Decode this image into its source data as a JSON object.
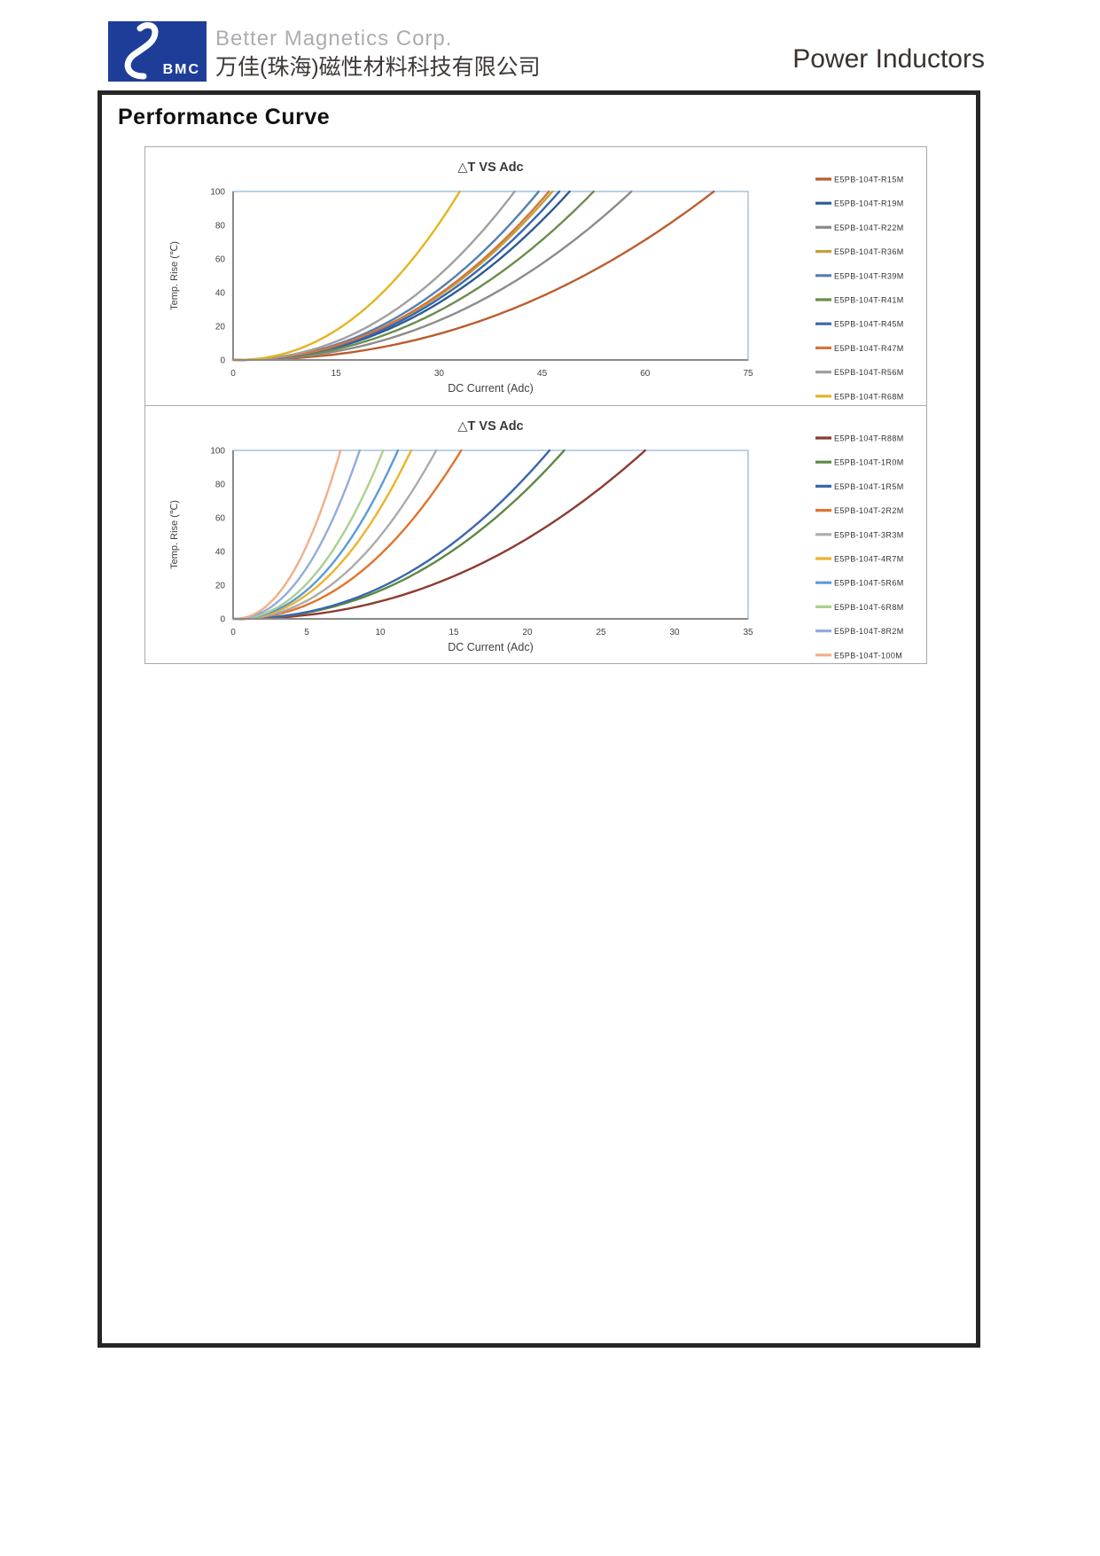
{
  "header": {
    "logo": {
      "abbr": "BMC",
      "color": "#1E3D99"
    },
    "company_en": "Better Magnetics Corp.",
    "company_cn": "万佳(珠海)磁性材料科技有限公司",
    "product_title": "Power Inductors"
  },
  "section_title": "Performance Curve",
  "chart_data": [
    {
      "type": "line",
      "title": "△T VS Adc",
      "xlabel": "DC Current (Adc)",
      "ylabel": "Temp. Rise (℃)",
      "xlim": [
        0,
        75
      ],
      "xticks": [
        0,
        15,
        30,
        45,
        60,
        75
      ],
      "ylim": [
        0,
        100
      ],
      "yticks": [
        0,
        20,
        40,
        60,
        80,
        100
      ],
      "grid": false,
      "legend_position": "right",
      "curve_model": "temp_rise(I) = 100 * (I / i_at_dt100)^exponent, clipped at 100 C",
      "curve_exponent": 2.2,
      "series": [
        {
          "name": "E5PB-104T-R15M",
          "color": "#BB5D2E",
          "i_at_dt100": 70
        },
        {
          "name": "E5PB-104T-R19M",
          "color": "#2E5A94",
          "i_at_dt100": 49
        },
        {
          "name": "E5PB-104T-R22M",
          "color": "#8C8C8C",
          "i_at_dt100": 58
        },
        {
          "name": "E5PB-104T-R36M",
          "color": "#C3A23D",
          "i_at_dt100": 46.5
        },
        {
          "name": "E5PB-104T-R39M",
          "color": "#557FB3",
          "i_at_dt100": 44.5
        },
        {
          "name": "E5PB-104T-R41M",
          "color": "#6D8C4C",
          "i_at_dt100": 52.5
        },
        {
          "name": "E5PB-104T-R45M",
          "color": "#3667B8",
          "i_at_dt100": 47.5
        },
        {
          "name": "E5PB-104T-R47M",
          "color": "#D4763B",
          "i_at_dt100": 46
        },
        {
          "name": "E5PB-104T-R56M",
          "color": "#A0A0A0",
          "i_at_dt100": 41
        },
        {
          "name": "E5PB-104T-R68M",
          "color": "#E4B520",
          "i_at_dt100": 33
        }
      ]
    },
    {
      "type": "line",
      "title": "△T VS Adc",
      "xlabel": "DC Current (Adc)",
      "ylabel": "Temp. Rise (℃)",
      "xlim": [
        0,
        35
      ],
      "xticks": [
        0,
        5,
        10,
        15,
        20,
        25,
        30,
        35
      ],
      "ylim": [
        0,
        100
      ],
      "yticks": [
        0,
        20,
        40,
        60,
        80,
        100
      ],
      "grid": false,
      "legend_position": "right",
      "curve_model": "temp_rise(I) = 100 * (I / i_at_dt100)^exponent, clipped at 100 C",
      "curve_exponent": 2.2,
      "series": [
        {
          "name": "E5PB-104T-R88M",
          "color": "#8C3B32",
          "i_at_dt100": 28
        },
        {
          "name": "E5PB-104T-1R0M",
          "color": "#5D8843",
          "i_at_dt100": 22.5
        },
        {
          "name": "E5PB-104T-1R5M",
          "color": "#3A66AD",
          "i_at_dt100": 21.5
        },
        {
          "name": "E5PB-104T-2R2M",
          "color": "#E2732E",
          "i_at_dt100": 15.5
        },
        {
          "name": "E5PB-104T-3R3M",
          "color": "#ABABAB",
          "i_at_dt100": 13.8
        },
        {
          "name": "E5PB-104T-4R7M",
          "color": "#ECB32B",
          "i_at_dt100": 12.1
        },
        {
          "name": "E5PB-104T-5R6M",
          "color": "#5B9BD5",
          "i_at_dt100": 11.2
        },
        {
          "name": "E5PB-104T-6R8M",
          "color": "#ABD08F",
          "i_at_dt100": 10.2
        },
        {
          "name": "E5PB-104T-8R2M",
          "color": "#93ACDC",
          "i_at_dt100": 8.6
        },
        {
          "name": "E5PB-104T-100M",
          "color": "#F2AE88",
          "i_at_dt100": 7.3
        }
      ]
    }
  ]
}
